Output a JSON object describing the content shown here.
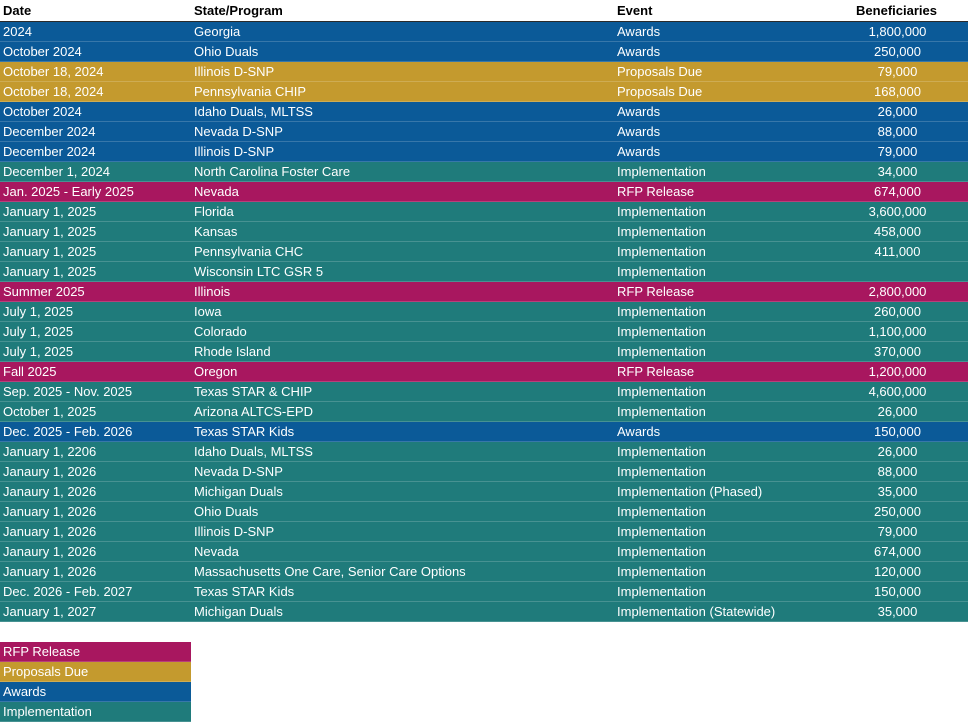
{
  "colors": {
    "RFP Release": "#a8175f",
    "Proposals Due": "#c49a2e",
    "Awards": "#0b5a98",
    "Implementation": "#1f7b7b"
  },
  "table": {
    "headers": [
      "Date",
      "State/Program",
      "Event",
      "Beneficiaries"
    ],
    "rows": [
      [
        "2024",
        "Georgia",
        "Awards",
        "1,800,000"
      ],
      [
        "October 2024",
        "Ohio Duals",
        "Awards",
        "250,000"
      ],
      [
        "October 18, 2024",
        "Illinois D-SNP",
        "Proposals Due",
        "79,000"
      ],
      [
        "October 18, 2024",
        "Pennsylvania CHIP",
        "Proposals Due",
        "168,000"
      ],
      [
        "October 2024",
        "Idaho Duals, MLTSS",
        "Awards",
        "26,000"
      ],
      [
        "December 2024",
        "Nevada D-SNP",
        "Awards",
        "88,000"
      ],
      [
        "December 2024",
        "Illinois D-SNP",
        "Awards",
        "79,000"
      ],
      [
        "December 1, 2024",
        "North Carolina Foster Care",
        "Implementation",
        "34,000"
      ],
      [
        "Jan. 2025 - Early 2025",
        "Nevada",
        "RFP Release",
        "674,000"
      ],
      [
        "January 1, 2025",
        "Florida",
        "Implementation",
        "3,600,000"
      ],
      [
        "January 1, 2025",
        "Kansas",
        "Implementation",
        "458,000"
      ],
      [
        "January 1, 2025",
        "Pennsylvania CHC",
        "Implementation",
        "411,000"
      ],
      [
        "January 1, 2025",
        "Wisconsin LTC GSR 5",
        "Implementation",
        ""
      ],
      [
        "Summer 2025",
        "Illinois",
        "RFP Release",
        "2,800,000"
      ],
      [
        "July 1, 2025",
        "Iowa",
        "Implementation",
        "260,000"
      ],
      [
        "July 1, 2025",
        "Colorado",
        "Implementation",
        "1,100,000"
      ],
      [
        "July 1, 2025",
        "Rhode Island",
        "Implementation",
        "370,000"
      ],
      [
        "Fall 2025",
        "Oregon",
        "RFP Release",
        "1,200,000"
      ],
      [
        "Sep. 2025 - Nov. 2025",
        "Texas STAR & CHIP",
        "Implementation",
        "4,600,000"
      ],
      [
        "October 1, 2025",
        "Arizona ALTCS-EPD",
        "Implementation",
        "26,000"
      ],
      [
        "Dec. 2025 - Feb. 2026",
        "Texas STAR Kids",
        "Awards",
        "150,000"
      ],
      [
        "January 1, 2206",
        "Idaho Duals, MLTSS",
        "Implementation",
        "26,000"
      ],
      [
        "Janaury 1, 2026",
        "Nevada D-SNP",
        "Implementation",
        "88,000"
      ],
      [
        "Janaury 1, 2026",
        "Michigan Duals",
        "Implementation (Phased)",
        "35,000"
      ],
      [
        "January 1, 2026",
        "Ohio Duals",
        "Implementation",
        "250,000"
      ],
      [
        "January 1, 2026",
        "Illinois D-SNP",
        "Implementation",
        "79,000"
      ],
      [
        "Janaury 1, 2026",
        "Nevada",
        "Implementation",
        "674,000"
      ],
      [
        "January 1, 2026",
        "Massachusetts One Care, Senior Care Options",
        "Implementation",
        "120,000"
      ],
      [
        "Dec. 2026 - Feb. 2027",
        "Texas STAR Kids",
        "Implementation",
        "150,000"
      ],
      [
        "January 1, 2027",
        "Michigan Duals",
        "Implementation (Statewide)",
        "35,000"
      ]
    ],
    "row_categories": [
      "Awards",
      "Awards",
      "Proposals Due",
      "Proposals Due",
      "Awards",
      "Awards",
      "Awards",
      "Implementation",
      "RFP Release",
      "Implementation",
      "Implementation",
      "Implementation",
      "Implementation",
      "RFP Release",
      "Implementation",
      "Implementation",
      "Implementation",
      "RFP Release",
      "Implementation",
      "Implementation",
      "Awards",
      "Implementation",
      "Implementation",
      "Implementation",
      "Implementation",
      "Implementation",
      "Implementation",
      "Implementation",
      "Implementation",
      "Implementation"
    ]
  },
  "legend": {
    "items": [
      "RFP Release",
      "Proposals Due",
      "Awards",
      "Implementation"
    ]
  }
}
